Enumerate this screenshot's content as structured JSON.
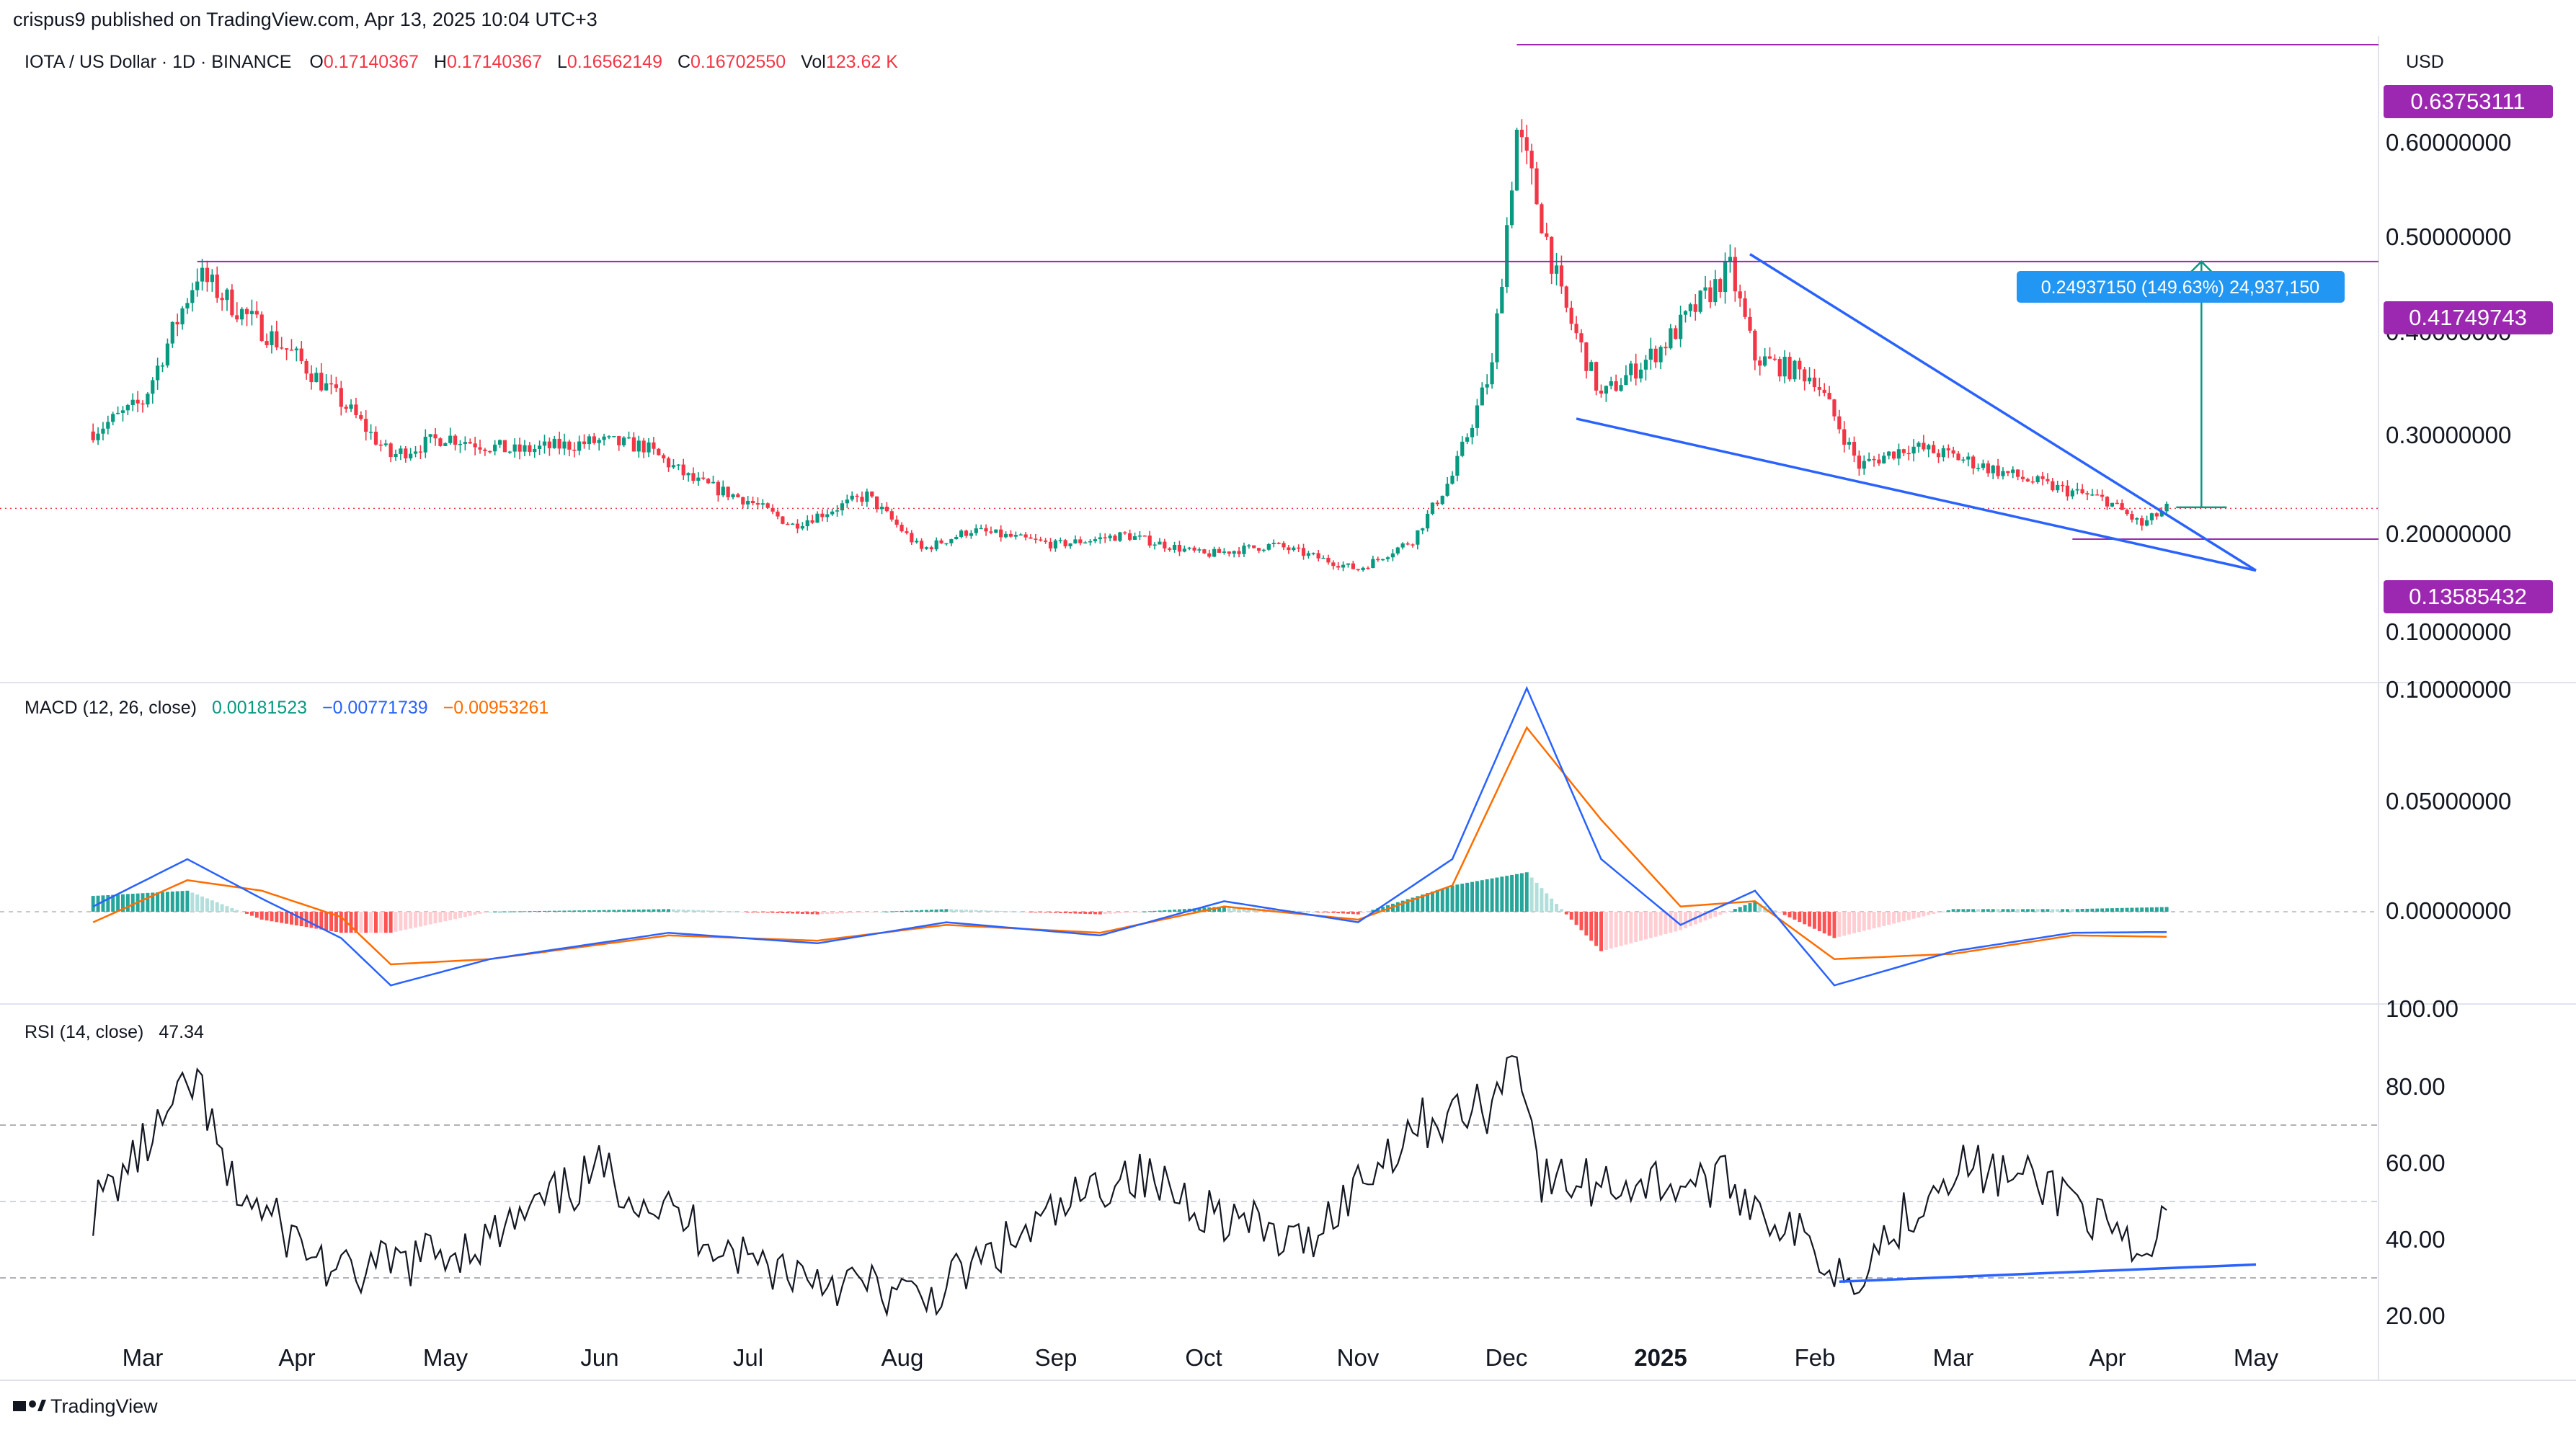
{
  "header": {
    "published": "crispus9 published on TradingView.com, Apr 13, 2025 10:04 UTC+3"
  },
  "footer": {
    "brand": "TradingView"
  },
  "price_pane": {
    "symbol": "IOTA / US Dollar · 1D · BINANCE",
    "o_label": "O",
    "o_value": "0.17140367",
    "h_label": "H",
    "h_value": "0.17140367",
    "l_label": "L",
    "l_value": "0.16562149",
    "c_label": "C",
    "c_value": "0.16702550",
    "vol_label": "Vol",
    "vol_value": "123.62 K",
    "currency": "USD",
    "axis_ticks": [
      "0.60000000",
      "0.50000000",
      "0.40000000",
      "0.30000000",
      "0.20000000",
      "0.10000000"
    ],
    "levels": [
      "0.63753111",
      "0.41749743",
      "0.13585432"
    ],
    "measure_label": "0.24937150 (149.63%) 24,937,150"
  },
  "macd_pane": {
    "label": "MACD",
    "params": "(12, 26, close)",
    "hist_value": "0.00181523",
    "macd_value": "−0.00771739",
    "signal_value": "−0.00953261",
    "axis_ticks": [
      "0.10000000",
      "0.05000000",
      "0.00000000"
    ]
  },
  "rsi_pane": {
    "label": "RSI",
    "params": "(14, close)",
    "value": "47.34",
    "axis_ticks": [
      "100.00",
      "80.00",
      "60.00",
      "40.00",
      "20.00"
    ]
  },
  "time_axis": [
    "Mar",
    "Apr",
    "May",
    "Jun",
    "Jul",
    "Aug",
    "Sep",
    "Oct",
    "Nov",
    "Dec",
    "2025",
    "Feb",
    "Mar",
    "Apr",
    "May"
  ],
  "colors": {
    "up": "#089981",
    "down": "#f23645",
    "macd": "#2962ff",
    "signal": "#ff6d00",
    "level": "#9c27b0",
    "trend": "#2962ff",
    "measure": "#089981",
    "badge": "#2196f3"
  },
  "chart_data": [
    {
      "type": "candlestick",
      "title": "IOTA / US Dollar · 1D · BINANCE",
      "ylabel": "USD",
      "ylim": [
        0.06,
        0.66
      ],
      "x": [
        "2024-02-20",
        "2024-03-01",
        "2024-03-12",
        "2024-03-20",
        "2024-04-01",
        "2024-04-12",
        "2024-04-20",
        "2024-05-01",
        "2024-05-15",
        "2024-06-01",
        "2024-06-10",
        "2024-06-20",
        "2024-07-01",
        "2024-07-10",
        "2024-07-25",
        "2024-08-05",
        "2024-08-15",
        "2024-09-01",
        "2024-09-15",
        "2024-10-01",
        "2024-10-15",
        "2024-11-01",
        "2024-11-12",
        "2024-11-20",
        "2024-11-28",
        "2024-12-03",
        "2024-12-06",
        "2024-12-12",
        "2024-12-20",
        "2025-01-01",
        "2025-01-15",
        "2025-01-20",
        "2025-02-01",
        "2025-02-10",
        "2025-02-20",
        "2025-03-01",
        "2025-03-10",
        "2025-03-20",
        "2025-04-01",
        "2025-04-08",
        "2025-04-13"
      ],
      "close": [
        0.245,
        0.275,
        0.405,
        0.37,
        0.32,
        0.265,
        0.22,
        0.24,
        0.225,
        0.235,
        0.23,
        0.195,
        0.175,
        0.15,
        0.18,
        0.125,
        0.145,
        0.13,
        0.14,
        0.12,
        0.13,
        0.105,
        0.135,
        0.2,
        0.31,
        0.55,
        0.5,
        0.38,
        0.28,
        0.33,
        0.41,
        0.32,
        0.3,
        0.21,
        0.23,
        0.22,
        0.205,
        0.19,
        0.175,
        0.15,
        0.167
      ],
      "levels": [
        0.63753111,
        0.41749743,
        0.13585432
      ],
      "measure": {
        "from": 0.1681,
        "to": 0.41749743,
        "change": 0.2493715,
        "percent": 149.63
      }
    },
    {
      "type": "line",
      "title": "MACD (12, 26, close)",
      "ylim": [
        -0.03,
        0.1
      ],
      "x": [
        "2024-02-20",
        "2024-03-10",
        "2024-03-25",
        "2024-04-10",
        "2024-04-20",
        "2024-05-10",
        "2024-06-15",
        "2024-07-15",
        "2024-08-10",
        "2024-09-10",
        "2024-10-05",
        "2024-11-01",
        "2024-11-20",
        "2024-12-05",
        "2024-12-20",
        "2025-01-05",
        "2025-01-20",
        "2025-02-05",
        "2025-03-01",
        "2025-03-25",
        "2025-04-13"
      ],
      "series": [
        {
          "name": "MACD",
          "values": [
            0.002,
            0.02,
            0.005,
            -0.01,
            -0.028,
            -0.018,
            -0.008,
            -0.012,
            -0.004,
            -0.009,
            0.004,
            -0.004,
            0.02,
            0.085,
            0.02,
            -0.005,
            0.008,
            -0.028,
            -0.015,
            -0.008,
            -0.0077
          ]
        },
        {
          "name": "Signal",
          "values": [
            -0.004,
            0.012,
            0.008,
            -0.002,
            -0.02,
            -0.018,
            -0.009,
            -0.011,
            -0.005,
            -0.008,
            0.002,
            -0.003,
            0.01,
            0.07,
            0.035,
            0.002,
            0.004,
            -0.018,
            -0.016,
            -0.009,
            -0.0095
          ]
        }
      ]
    },
    {
      "type": "line",
      "title": "RSI (14, close)",
      "ylim": [
        14,
        100
      ],
      "x": [
        "2024-02-20",
        "2024-03-05",
        "2024-03-12",
        "2024-03-18",
        "2024-04-10",
        "2024-05-10",
        "2024-06-01",
        "2024-07-01",
        "2024-08-05",
        "2024-09-15",
        "2024-10-20",
        "2024-11-12",
        "2024-11-28",
        "2024-12-03",
        "2024-12-08",
        "2025-01-15",
        "2025-02-08",
        "2025-03-01",
        "2025-03-25",
        "2025-04-08",
        "2025-04-13"
      ],
      "series": [
        {
          "name": "RSI",
          "values": [
            48,
            70,
            82,
            55,
            30,
            40,
            58,
            35,
            24,
            58,
            38,
            70,
            75,
            92,
            55,
            55,
            30,
            60,
            52,
            32,
            47.34
          ]
        }
      ],
      "reference_lines": [
        70,
        50,
        30
      ]
    }
  ]
}
